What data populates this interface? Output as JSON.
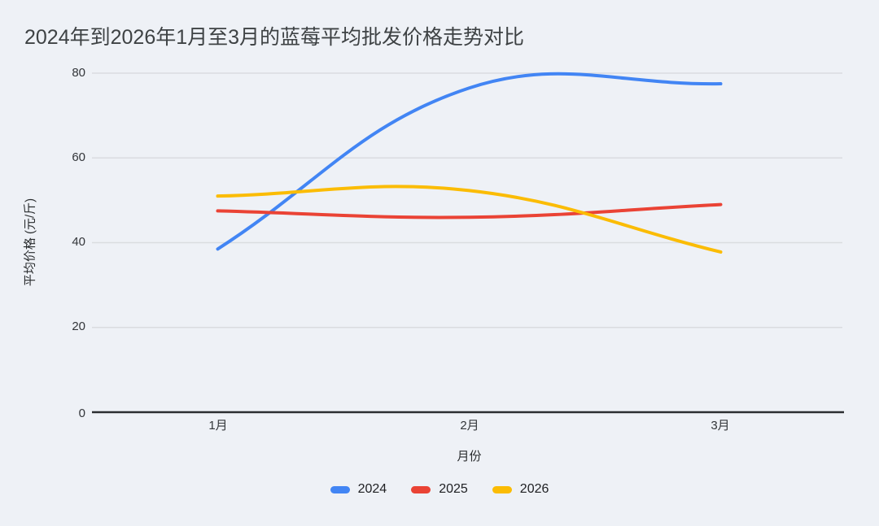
{
  "title": "2024年到2026年1月至3月的蓝莓平均批发价格走势对比",
  "chart_data": {
    "type": "line",
    "categories": [
      "1月",
      "2月",
      "3月"
    ],
    "series": [
      {
        "name": "2024",
        "color": "#4285F4",
        "values": [
          38.5,
          76.5,
          77.5
        ]
      },
      {
        "name": "2025",
        "color": "#EA4335",
        "values": [
          47.5,
          46,
          49
        ]
      },
      {
        "name": "2026",
        "color": "#FBBC04",
        "values": [
          51,
          52.3,
          37.8
        ]
      }
    ],
    "xlabel": "月份",
    "ylabel": "平均价格 (元/斤)",
    "ylim": [
      0,
      80
    ],
    "yticks": [
      0,
      20,
      40,
      60,
      80
    ],
    "grid": true,
    "legend_position": "bottom",
    "line_style": "smooth"
  },
  "colors": {
    "background": "#EEF1F6",
    "grid": "#DADCE0",
    "axis": "#2B2E31",
    "title_text": "#3E4244",
    "tick_text": "#33363A"
  }
}
